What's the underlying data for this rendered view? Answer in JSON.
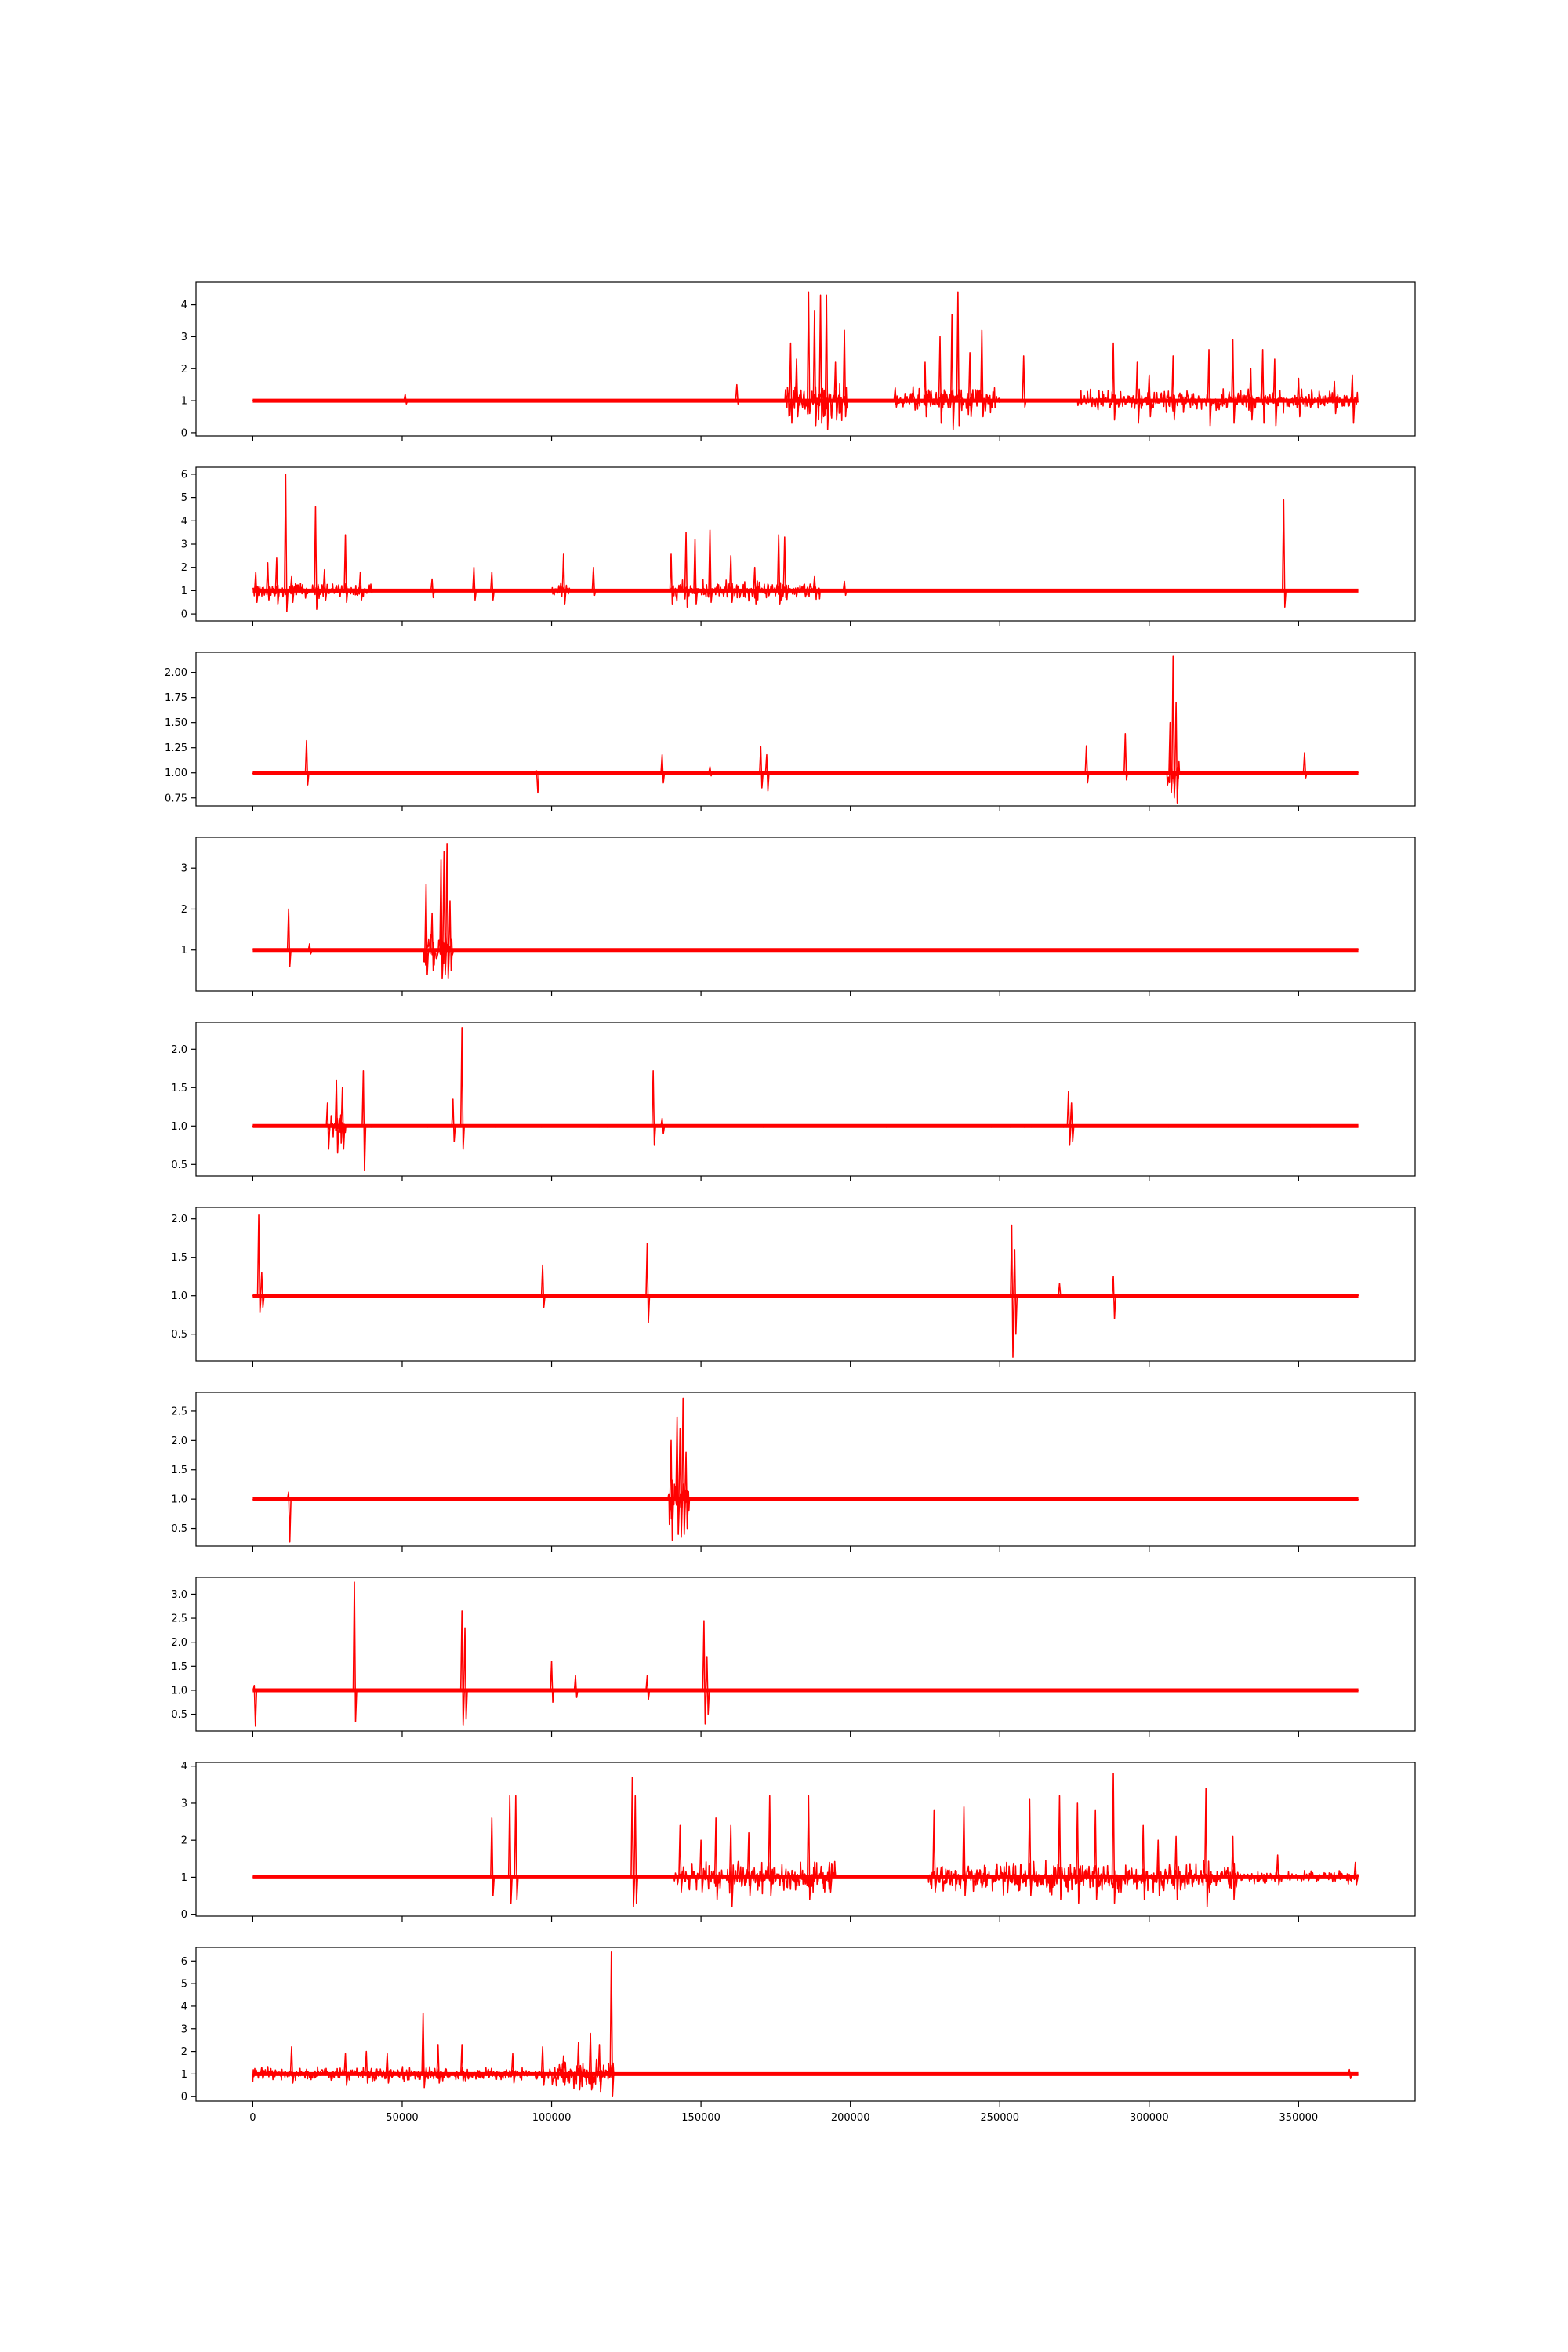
{
  "chart_data": {
    "type": "line",
    "color": "#ff0000",
    "shared_x_ticks": [
      0,
      50000,
      100000,
      150000,
      200000,
      250000,
      300000,
      350000
    ],
    "shared_x_tick_labels": [
      "0",
      "50000",
      "100000",
      "150000",
      "200000",
      "250000",
      "300000",
      "350000"
    ],
    "xlim": [
      -19000,
      389000
    ],
    "x_data_range": [
      0,
      370000
    ],
    "baseline": 1.0,
    "panels": [
      {
        "ylim": [
          -0.1,
          4.7
        ],
        "y_ticks": [
          0,
          1,
          2,
          3,
          4
        ],
        "y_tick_labels": [
          "0",
          "1",
          "2",
          "3",
          "4"
        ],
        "noise_amp": 0.02,
        "spikes": [
          [
            51000,
            1.2,
            0.9
          ],
          [
            162000,
            1.5,
            0.9
          ],
          [
            180000,
            2.8,
            0.3
          ],
          [
            182000,
            2.3,
            0.5
          ],
          [
            186000,
            4.4,
            0.6
          ],
          [
            188000,
            3.8,
            0.2
          ],
          [
            190000,
            4.3,
            0.3
          ],
          [
            192000,
            4.3,
            0.1
          ],
          [
            195000,
            2.2,
            0.4
          ],
          [
            198000,
            3.2,
            0.5
          ],
          [
            215000,
            1.4,
            0.8
          ],
          [
            225000,
            2.2,
            0.5
          ],
          [
            230000,
            3.0,
            0.3
          ],
          [
            234000,
            3.7,
            0.1
          ],
          [
            236000,
            4.4,
            0.2
          ],
          [
            240000,
            2.5,
            0.5
          ],
          [
            244000,
            3.2,
            0.5
          ],
          [
            258000,
            2.4,
            0.8
          ],
          [
            288000,
            2.8,
            0.4
          ],
          [
            296000,
            2.2,
            0.3
          ],
          [
            300000,
            1.8,
            0.5
          ],
          [
            308000,
            2.4,
            0.4
          ],
          [
            320000,
            2.6,
            0.2
          ],
          [
            328000,
            2.9,
            0.3
          ],
          [
            334000,
            2.0,
            0.4
          ],
          [
            338000,
            2.6,
            0.3
          ],
          [
            342000,
            2.3,
            0.2
          ],
          [
            350000,
            1.7,
            0.5
          ],
          [
            362000,
            1.6,
            0.6
          ],
          [
            368000,
            1.8,
            0.3
          ]
        ],
        "bursts": [
          [
            178000,
            199000,
            0.7
          ],
          [
            215000,
            250000,
            0.5
          ],
          [
            276000,
            370000,
            0.4
          ]
        ]
      },
      {
        "ylim": [
          -0.3,
          6.3
        ],
        "y_ticks": [
          0,
          1,
          2,
          3,
          4,
          5,
          6
        ],
        "y_tick_labels": [
          "0",
          "1",
          "2",
          "3",
          "4",
          "5",
          "6"
        ],
        "noise_amp": 0.02,
        "spikes": [
          [
            1000,
            1.8,
            0.5
          ],
          [
            5000,
            2.2,
            0.6
          ],
          [
            8000,
            2.4,
            0.4
          ],
          [
            11000,
            6.0,
            0.1
          ],
          [
            13000,
            1.6,
            0.5
          ],
          [
            21000,
            4.6,
            0.2
          ],
          [
            24000,
            1.9,
            0.6
          ],
          [
            31000,
            3.4,
            0.5
          ],
          [
            36000,
            1.8,
            0.6
          ],
          [
            60000,
            1.5,
            0.7
          ],
          [
            74000,
            2.0,
            0.6
          ],
          [
            80000,
            1.8,
            0.6
          ],
          [
            104000,
            2.6,
            0.4
          ],
          [
            114000,
            2.0,
            0.8
          ],
          [
            140000,
            2.6,
            0.4
          ],
          [
            145000,
            3.5,
            0.3
          ],
          [
            148000,
            3.2,
            0.4
          ],
          [
            153000,
            3.6,
            0.5
          ],
          [
            160000,
            2.5,
            0.5
          ],
          [
            168000,
            2.0,
            0.4
          ],
          [
            176000,
            3.4,
            0.4
          ],
          [
            178000,
            3.3,
            0.7
          ],
          [
            188000,
            1.6,
            0.8
          ],
          [
            198000,
            1.4,
            0.8
          ],
          [
            345000,
            4.9,
            0.3
          ]
        ],
        "bursts": [
          [
            0,
            40000,
            0.4
          ],
          [
            100000,
            106000,
            0.4
          ],
          [
            140000,
            190000,
            0.5
          ]
        ]
      },
      {
        "ylim": [
          0.67,
          2.2
        ],
        "y_ticks": [
          0.75,
          1.0,
          1.25,
          1.5,
          1.75,
          2.0
        ],
        "y_tick_labels": [
          "0.75",
          "1.00",
          "1.25",
          "1.50",
          "1.75",
          "2.00"
        ],
        "noise_amp": 0.012,
        "spikes": [
          [
            18000,
            1.32,
            0.88
          ],
          [
            95000,
            1.02,
            0.8
          ],
          [
            137000,
            1.18,
            0.9
          ],
          [
            153000,
            1.06,
            0.97
          ],
          [
            170000,
            1.26,
            0.85
          ],
          [
            172000,
            1.18,
            0.82
          ],
          [
            279000,
            1.27,
            0.9
          ],
          [
            292000,
            1.39,
            0.93
          ],
          [
            307000,
            1.5,
            0.8
          ],
          [
            308000,
            2.16,
            0.75
          ],
          [
            309000,
            1.7,
            0.7
          ],
          [
            352000,
            1.2,
            0.95
          ]
        ],
        "bursts": [
          [
            306000,
            310000,
            0.25
          ]
        ]
      },
      {
        "ylim": [
          0.0,
          3.75
        ],
        "y_ticks": [
          1,
          2,
          3
        ],
        "y_tick_labels": [
          "1",
          "2",
          "3"
        ],
        "noise_amp": 0.02,
        "spikes": [
          [
            12000,
            2.0,
            0.6
          ],
          [
            19000,
            1.15,
            0.9
          ],
          [
            58000,
            2.6,
            0.4
          ],
          [
            60000,
            1.9,
            0.5
          ],
          [
            63000,
            3.2,
            0.3
          ],
          [
            64000,
            3.4,
            0.4
          ],
          [
            65000,
            3.6,
            0.3
          ],
          [
            66000,
            2.2,
            0.5
          ]
        ],
        "bursts": [
          [
            57000,
            67000,
            0.6
          ]
        ]
      },
      {
        "ylim": [
          0.35,
          2.35
        ],
        "y_ticks": [
          0.5,
          1.0,
          1.5,
          2.0
        ],
        "y_tick_labels": [
          "0.5",
          "1.0",
          "1.5",
          "2.0"
        ],
        "noise_amp": 0.015,
        "spikes": [
          [
            25000,
            1.3,
            0.7
          ],
          [
            28000,
            1.6,
            0.65
          ],
          [
            30000,
            1.5,
            0.7
          ],
          [
            37000,
            1.72,
            0.42
          ],
          [
            67000,
            1.35,
            0.8
          ],
          [
            70000,
            2.28,
            0.7
          ],
          [
            134000,
            1.72,
            0.75
          ],
          [
            137000,
            1.1,
            0.9
          ],
          [
            273000,
            1.45,
            0.75
          ],
          [
            274000,
            1.3,
            0.8
          ]
        ],
        "bursts": [
          [
            25000,
            31000,
            0.25
          ]
        ]
      },
      {
        "ylim": [
          0.15,
          2.15
        ],
        "y_ticks": [
          0.5,
          1.0,
          1.5,
          2.0
        ],
        "y_tick_labels": [
          "0.5",
          "1.0",
          "1.5",
          "2.0"
        ],
        "noise_amp": 0.015,
        "spikes": [
          [
            2000,
            2.05,
            0.78
          ],
          [
            3000,
            1.3,
            0.85
          ],
          [
            97000,
            1.4,
            0.85
          ],
          [
            132000,
            1.68,
            0.65
          ],
          [
            254000,
            1.92,
            0.2
          ],
          [
            255000,
            1.6,
            0.5
          ],
          [
            270000,
            1.16,
            0.98
          ],
          [
            288000,
            1.25,
            0.7
          ]
        ],
        "bursts": []
      },
      {
        "ylim": [
          0.2,
          2.82
        ],
        "y_ticks": [
          0.5,
          1.0,
          1.5,
          2.0,
          2.5
        ],
        "y_tick_labels": [
          "0.5",
          "1.0",
          "1.5",
          "2.0",
          "2.5"
        ],
        "noise_amp": 0.015,
        "spikes": [
          [
            12000,
            1.12,
            0.27
          ],
          [
            140000,
            2.0,
            0.3
          ],
          [
            142000,
            2.4,
            0.4
          ],
          [
            143000,
            2.2,
            0.35
          ],
          [
            144000,
            2.72,
            0.4
          ],
          [
            145000,
            1.8,
            0.5
          ]
        ],
        "bursts": [
          [
            139000,
            146000,
            0.55
          ]
        ]
      },
      {
        "ylim": [
          0.15,
          3.35
        ],
        "y_ticks": [
          0.5,
          1.0,
          1.5,
          2.0,
          2.5,
          3.0
        ],
        "y_tick_labels": [
          "0.5",
          "1.0",
          "1.5",
          "2.0",
          "2.5",
          "3.0"
        ],
        "noise_amp": 0.012,
        "spikes": [
          [
            500,
            1.1,
            0.25
          ],
          [
            34000,
            3.25,
            0.35
          ],
          [
            70000,
            2.65,
            0.28
          ],
          [
            71000,
            2.3,
            0.4
          ],
          [
            100000,
            1.6,
            0.75
          ],
          [
            108000,
            1.3,
            0.85
          ],
          [
            132000,
            1.3,
            0.8
          ],
          [
            151000,
            2.45,
            0.3
          ],
          [
            152000,
            1.7,
            0.5
          ]
        ],
        "bursts": []
      },
      {
        "ylim": [
          -0.05,
          4.1
        ],
        "y_ticks": [
          0,
          1,
          2,
          3,
          4
        ],
        "y_tick_labels": [
          "0",
          "1",
          "2",
          "3",
          "4"
        ],
        "noise_amp": 0.02,
        "spikes": [
          [
            80000,
            2.6,
            0.5
          ],
          [
            86000,
            3.2,
            0.3
          ],
          [
            88000,
            3.2,
            0.4
          ],
          [
            127000,
            3.7,
            0.2
          ],
          [
            128000,
            3.2,
            0.3
          ],
          [
            143000,
            2.4,
            0.6
          ],
          [
            150000,
            2.0,
            0.6
          ],
          [
            155000,
            2.6,
            0.4
          ],
          [
            160000,
            2.4,
            0.2
          ],
          [
            166000,
            2.2,
            0.5
          ],
          [
            173000,
            3.2,
            0.5
          ],
          [
            186000,
            3.2,
            0.4
          ],
          [
            193000,
            1.4,
            0.6
          ],
          [
            228000,
            2.8,
            0.6
          ],
          [
            238000,
            2.9,
            0.5
          ],
          [
            260000,
            3.1,
            0.5
          ],
          [
            270000,
            3.2,
            0.4
          ],
          [
            276000,
            3.0,
            0.3
          ],
          [
            282000,
            2.8,
            0.4
          ],
          [
            288000,
            3.8,
            0.3
          ],
          [
            298000,
            2.4,
            0.4
          ],
          [
            303000,
            2.0,
            0.5
          ],
          [
            309000,
            2.1,
            0.4
          ],
          [
            319000,
            3.4,
            0.2
          ],
          [
            328000,
            2.1,
            0.4
          ],
          [
            343000,
            1.6,
            0.8
          ],
          [
            369000,
            1.4,
            0.8
          ]
        ],
        "bursts": [
          [
            141000,
            195000,
            0.5
          ],
          [
            226000,
            330000,
            0.5
          ],
          [
            330000,
            370000,
            0.2
          ]
        ]
      },
      {
        "ylim": [
          -0.2,
          6.6
        ],
        "y_ticks": [
          0,
          1,
          2,
          3,
          4,
          5,
          6
        ],
        "y_tick_labels": [
          "0",
          "1",
          "2",
          "3",
          "4",
          "5",
          "6"
        ],
        "noise_amp": 0.02,
        "spikes": [
          [
            3000,
            1.3,
            0.8
          ],
          [
            13000,
            2.2,
            0.6
          ],
          [
            31000,
            1.9,
            0.5
          ],
          [
            38000,
            2.0,
            0.6
          ],
          [
            45000,
            1.9,
            0.6
          ],
          [
            57000,
            3.7,
            0.4
          ],
          [
            62000,
            2.3,
            0.6
          ],
          [
            70000,
            2.3,
            0.7
          ],
          [
            87000,
            1.9,
            0.6
          ],
          [
            97000,
            2.2,
            0.5
          ],
          [
            104000,
            1.8,
            0.5
          ],
          [
            109000,
            2.4,
            0.3
          ],
          [
            113000,
            2.8,
            0.3
          ],
          [
            116000,
            2.3,
            0.2
          ],
          [
            120000,
            6.4,
            0.0
          ],
          [
            367000,
            1.2,
            0.8
          ]
        ],
        "bursts": [
          [
            0,
            120000,
            0.35
          ],
          [
            100000,
            121000,
            0.7
          ]
        ]
      }
    ]
  }
}
